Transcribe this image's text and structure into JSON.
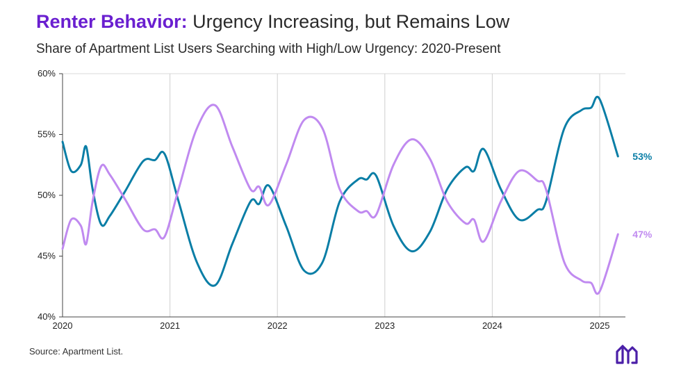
{
  "title_bold": "Renter Behavior:",
  "title_rest": "Urgency Increasing, but Remains Low",
  "subtitle": "Share of Apartment List Users Searching with High/Low Urgency: 2020-Present",
  "source": "Source: Apartment List.",
  "logo": "apartment-list-logo",
  "chart_data": {
    "type": "line",
    "title": "Renter Behavior: Urgency Increasing, but Remains Low",
    "subtitle": "Share of Apartment List Users Searching with High/Low Urgency: 2020-Present",
    "xlabel": "",
    "ylabel": "",
    "xlim": [
      2020,
      2025.25
    ],
    "ylim": [
      40,
      60
    ],
    "x_ticks": [
      "2020",
      "2021",
      "2022",
      "2023",
      "2024",
      "2025"
    ],
    "y_ticks": [
      "40%",
      "45%",
      "50%",
      "55%",
      "60%"
    ],
    "grid": "vertical at year ticks",
    "series": [
      {
        "name": "teal",
        "color": "#0a7ea6",
        "end_label": "53%",
        "points": [
          [
            2020.0,
            54.4
          ],
          [
            2020.08,
            52.0
          ],
          [
            2020.17,
            52.5
          ],
          [
            2020.22,
            54.0
          ],
          [
            2020.28,
            50.5
          ],
          [
            2020.36,
            47.6
          ],
          [
            2020.44,
            48.3
          ],
          [
            2020.58,
            50.3
          ],
          [
            2020.75,
            52.8
          ],
          [
            2020.86,
            52.9
          ],
          [
            2020.95,
            53.4
          ],
          [
            2021.08,
            49.5
          ],
          [
            2021.25,
            44.5
          ],
          [
            2021.42,
            42.6
          ],
          [
            2021.58,
            46.0
          ],
          [
            2021.75,
            49.5
          ],
          [
            2021.83,
            49.3
          ],
          [
            2021.92,
            50.8
          ],
          [
            2022.08,
            47.5
          ],
          [
            2022.25,
            43.8
          ],
          [
            2022.42,
            44.5
          ],
          [
            2022.58,
            49.5
          ],
          [
            2022.75,
            51.3
          ],
          [
            2022.83,
            51.3
          ],
          [
            2022.92,
            51.6
          ],
          [
            2023.08,
            47.5
          ],
          [
            2023.25,
            45.4
          ],
          [
            2023.42,
            47.0
          ],
          [
            2023.58,
            50.5
          ],
          [
            2023.75,
            52.3
          ],
          [
            2023.83,
            52.0
          ],
          [
            2023.92,
            53.8
          ],
          [
            2024.08,
            50.5
          ],
          [
            2024.25,
            48.0
          ],
          [
            2024.42,
            48.8
          ],
          [
            2024.5,
            49.5
          ],
          [
            2024.67,
            55.5
          ],
          [
            2024.83,
            57.0
          ],
          [
            2024.92,
            57.2
          ],
          [
            2025.0,
            57.9
          ],
          [
            2025.17,
            53.2
          ]
        ]
      },
      {
        "name": "purple",
        "color": "#c08af0",
        "end_label": "47%",
        "points": [
          [
            2020.0,
            45.6
          ],
          [
            2020.08,
            48.0
          ],
          [
            2020.17,
            47.5
          ],
          [
            2020.22,
            46.0
          ],
          [
            2020.28,
            49.5
          ],
          [
            2020.36,
            52.4
          ],
          [
            2020.44,
            51.7
          ],
          [
            2020.58,
            49.7
          ],
          [
            2020.75,
            47.2
          ],
          [
            2020.86,
            47.2
          ],
          [
            2020.95,
            46.6
          ],
          [
            2021.08,
            50.5
          ],
          [
            2021.25,
            55.5
          ],
          [
            2021.42,
            57.4
          ],
          [
            2021.58,
            54.0
          ],
          [
            2021.75,
            50.5
          ],
          [
            2021.83,
            50.7
          ],
          [
            2021.92,
            49.2
          ],
          [
            2022.08,
            52.5
          ],
          [
            2022.25,
            56.2
          ],
          [
            2022.42,
            55.5
          ],
          [
            2022.58,
            50.5
          ],
          [
            2022.75,
            48.7
          ],
          [
            2022.83,
            48.7
          ],
          [
            2022.92,
            48.4
          ],
          [
            2023.08,
            52.5
          ],
          [
            2023.25,
            54.6
          ],
          [
            2023.42,
            53.0
          ],
          [
            2023.58,
            49.5
          ],
          [
            2023.75,
            47.7
          ],
          [
            2023.83,
            48.0
          ],
          [
            2023.92,
            46.2
          ],
          [
            2024.08,
            49.5
          ],
          [
            2024.25,
            52.0
          ],
          [
            2024.42,
            51.2
          ],
          [
            2024.5,
            50.5
          ],
          [
            2024.67,
            44.5
          ],
          [
            2024.83,
            43.0
          ],
          [
            2024.92,
            42.8
          ],
          [
            2025.0,
            42.1
          ],
          [
            2025.17,
            46.8
          ]
        ]
      }
    ]
  }
}
